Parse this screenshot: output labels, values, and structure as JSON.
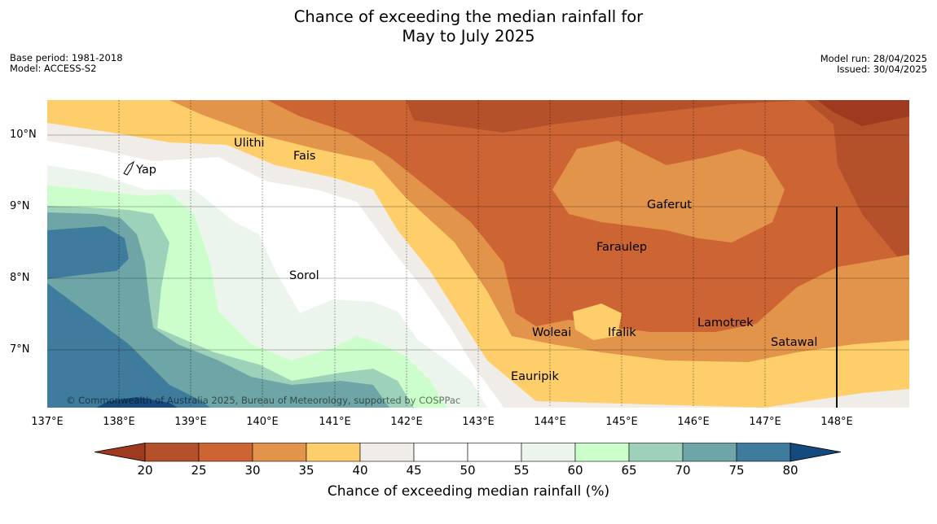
{
  "title_line1": "Chance of exceeding the median rainfall for",
  "title_line2": "May to July 2025",
  "meta": {
    "base_period": "Base period: 1981-2018",
    "model": "Model: ACCESS-S2",
    "model_run": "Model run: 28/04/2025",
    "issued": "Issued: 30/04/2025"
  },
  "map": {
    "lat_labels": [
      "10°N",
      "9°N",
      "8°N",
      "7°N"
    ],
    "lon_labels": [
      "137°E",
      "138°E",
      "139°E",
      "140°E",
      "141°E",
      "142°E",
      "143°E",
      "144°E",
      "145°E",
      "146°E",
      "147°E",
      "148°E"
    ],
    "places": [
      "Ulithi",
      "Fais",
      "Yap",
      "Gaferut",
      "Faraulep",
      "Sorol",
      "Lamotrek",
      "Woleai",
      "Ifalik",
      "Satawal",
      "Eauripik"
    ],
    "copyright": "© Commonwealth of Australia 2025, Bureau of Meteorology, supported by COSPPac"
  },
  "legend": {
    "ticks": [
      "20",
      "25",
      "30",
      "35",
      "40",
      "45",
      "50",
      "55",
      "60",
      "65",
      "70",
      "75",
      "80"
    ],
    "colors": [
      "#9e3a20",
      "#b5512a",
      "#cc6433",
      "#e2944a",
      "#fece6a",
      "#f0ece7",
      "#ffffff",
      "#ffffff",
      "#ebf5eb",
      "#cbfecb",
      "#9ed1ba",
      "#6ea5a6",
      "#3f7b9d",
      "#144a7d"
    ],
    "title": "Chance of exceeding median rainfall (%)"
  }
}
